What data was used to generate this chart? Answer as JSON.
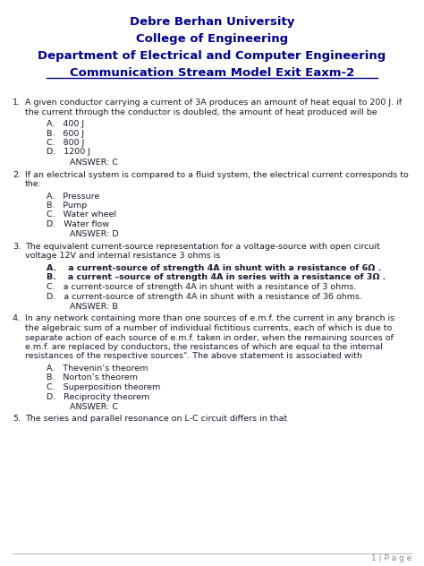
{
  "title1": "Debre Berhan University",
  "title2": "College of Engineering",
  "title3": "Department of Electrical and Computer Engineering",
  "title4": "Communication Stream Model Exit Eaxm-2",
  "title_color": "#00008B",
  "body_color": "#1a1a2e",
  "bg_color": "#ffffff",
  "page_label": "1 | P a g e",
  "questions": [
    {
      "num": "1.",
      "text": "A given conductor carrying a current of 3A produces an amount of heat equal to 200 J. if\nthe current through the conductor is doubled, the amount of heat produced will be",
      "choices": [
        "A.   400 J",
        "B.   600 J",
        "C.   800 J",
        "D.   1200 J"
      ],
      "answer": "ANSWER: C",
      "choices_bold": [
        false,
        false,
        false,
        false
      ]
    },
    {
      "num": "2.",
      "text": "If an electrical system is compared to a fluid system, the electrical current corresponds to\nthe:",
      "choices": [
        "A.   Pressure",
        "B.   Pump",
        "C.   Water wheel",
        "D.   Water flow"
      ],
      "answer": "ANSWER: D",
      "choices_bold": [
        false,
        false,
        false,
        false
      ]
    },
    {
      "num": "3.",
      "text": "The equivalent current-source representation for a voltage-source with open circuit\nvoltage 12V and internal resistance 3 ohms is",
      "choices": [
        "A.    a current-source of strength 4A in shunt with a resistance of 6Ω .",
        "B.    a current –source of strength 4A in series with a resistance of 3Ω .",
        "C.   a current-source of strength 4A in shunt with a resistance of 3 ohms.",
        "D.   a current-source of strength 4A in shunt with a resistance of 36 ohms."
      ],
      "answer": "ANSWER: B",
      "choices_bold": [
        true,
        true,
        false,
        false
      ]
    },
    {
      "num": "4.",
      "text": "In any network containing more than one sources of e.m.f. the current in any branch is\nthe algebraic sum of a number of individual fictitious currents, each of which is due to\nseparate action of each source of e.m.f. taken in order, when the remaining sources of\ne.m.f. are replaced by conductors, the resistances of which are equal to the internal\nresistances of the respective sources\". The above statement is associated with",
      "choices": [
        "A.   Thevenin’s theorem",
        "B.   Norton’s theorem",
        "C.   Superposition theorem",
        "D.   Reciprocity theorem"
      ],
      "answer": "ANSWER: C",
      "choices_bold": [
        false,
        false,
        false,
        false
      ]
    },
    {
      "num": "5.",
      "text": "The series and parallel resonance on L-C circuit differs in that",
      "choices": [],
      "answer": "",
      "choices_bold": []
    }
  ],
  "figsize": [
    4.74,
    6.32
  ],
  "dpi": 100
}
